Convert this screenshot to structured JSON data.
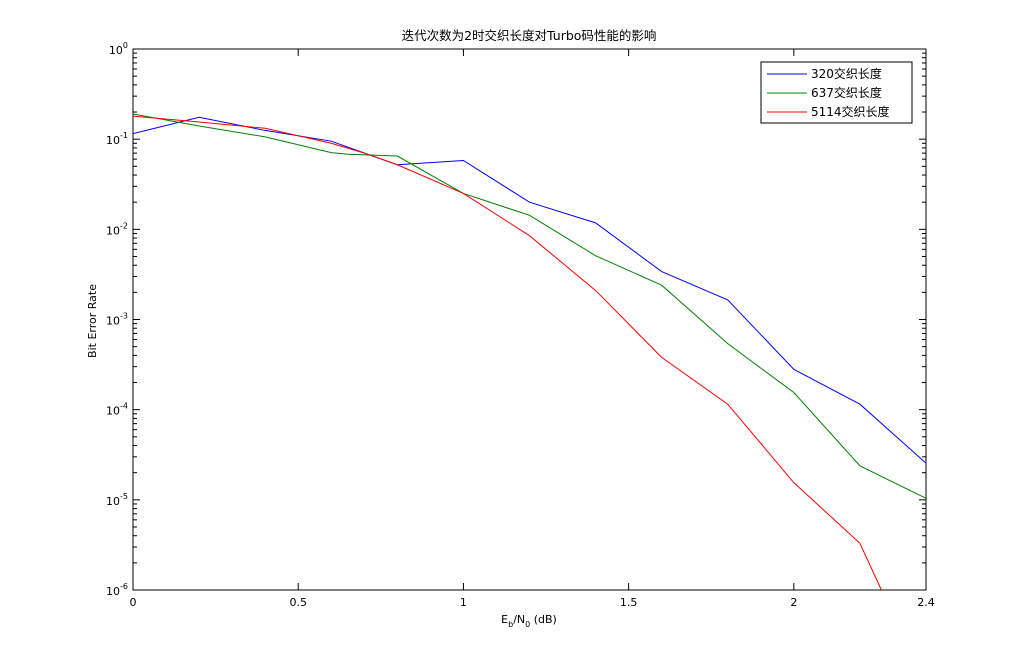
{
  "chart_data": {
    "type": "line",
    "title": "迭代次数为2时交织长度对Turbo码性能的影响",
    "xlabel_main": "E",
    "xlabel_sub1": "b",
    "xlabel_mid": "/N",
    "xlabel_sub2": "0",
    "xlabel_tail": " (dB)",
    "ylabel": "Bit Error Rate",
    "xlim": [
      0,
      2.4
    ],
    "ylim": [
      1e-06,
      1
    ],
    "yscale": "log",
    "grid": false,
    "legend_position": "top-right",
    "x_ticks": [
      {
        "value": 0,
        "label": "0"
      },
      {
        "value": 0.5,
        "label": "0.5"
      },
      {
        "value": 1,
        "label": "1"
      },
      {
        "value": 1.5,
        "label": "1.5"
      },
      {
        "value": 2,
        "label": "2"
      },
      {
        "value": 2.4,
        "label": "2.4"
      }
    ],
    "y_ticks": [
      {
        "value": 1.0,
        "base": "10",
        "exp": "0"
      },
      {
        "value": 0.1,
        "base": "10",
        "exp": "-1"
      },
      {
        "value": 0.01,
        "base": "10",
        "exp": "-2"
      },
      {
        "value": 0.001,
        "base": "10",
        "exp": "-3"
      },
      {
        "value": 0.0001,
        "base": "10",
        "exp": "-4"
      },
      {
        "value": 1e-05,
        "base": "10",
        "exp": "-5"
      },
      {
        "value": 1e-06,
        "base": "10",
        "exp": "-6"
      }
    ],
    "series": [
      {
        "name": "320交织长度",
        "color": "#0000ff",
        "x": [
          0,
          0.2,
          0.4,
          0.6,
          0.8,
          1.0,
          1.2,
          1.4,
          1.6,
          1.8,
          2.0,
          2.2,
          2.4
        ],
        "y": [
          0.115,
          0.175,
          0.125,
          0.095,
          0.052,
          0.058,
          0.02,
          0.0118,
          0.0034,
          0.00165,
          0.00028,
          0.000115,
          2.55e-05
        ]
      },
      {
        "name": "637交织长度",
        "color": "#008000",
        "x": [
          0,
          0.2,
          0.4,
          0.6,
          0.65,
          0.8,
          1.0,
          1.2,
          1.4,
          1.6,
          1.8,
          2.0,
          2.2,
          2.4
        ],
        "y": [
          0.19,
          0.14,
          0.106,
          0.071,
          0.068,
          0.065,
          0.025,
          0.0143,
          0.0051,
          0.0024,
          0.00054,
          0.000155,
          2.38e-05,
          1.04e-05
        ]
      },
      {
        "name": "5114交织长度",
        "color": "#ff0000",
        "x": [
          0,
          0.2,
          0.4,
          0.6,
          0.7,
          0.8,
          1.0,
          1.2,
          1.4,
          1.6,
          1.8,
          2.0,
          2.2,
          2.265
        ],
        "y": [
          0.18,
          0.155,
          0.132,
          0.09,
          0.07,
          0.052,
          0.025,
          0.0085,
          0.0021,
          0.00038,
          0.000115,
          1.55e-05,
          3.3e-06,
          1e-06
        ]
      }
    ]
  }
}
